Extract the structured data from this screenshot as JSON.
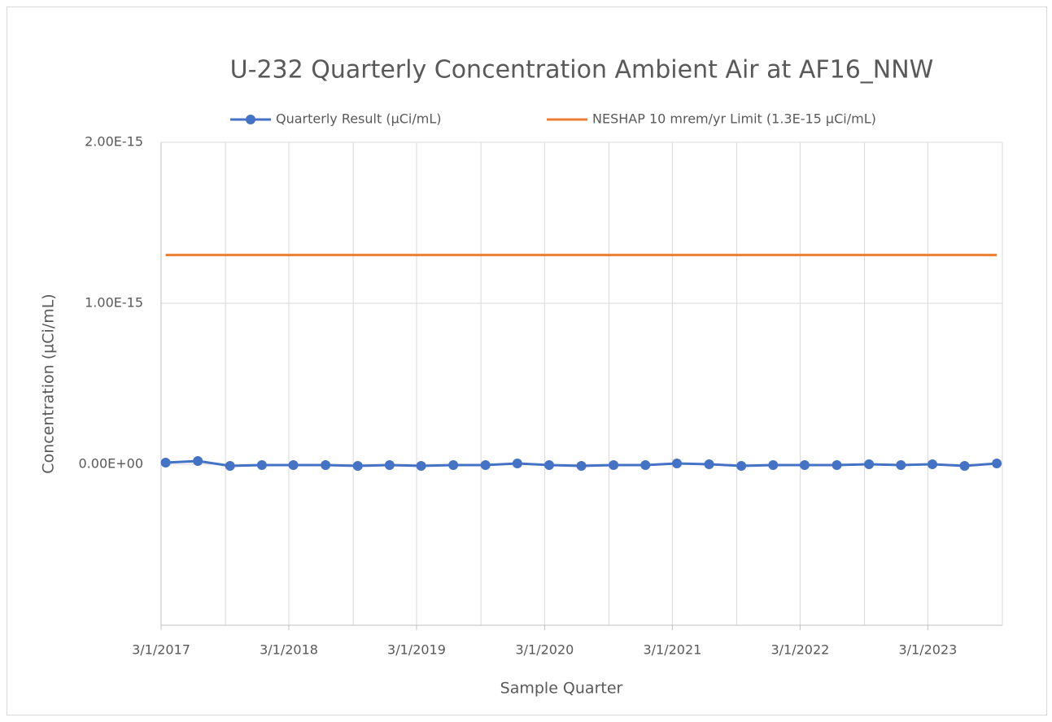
{
  "chart_data": {
    "type": "line",
    "title": "U-232 Quarterly Concentration Ambient Air  at AF16_NNW",
    "x_label": "Sample Quarter",
    "y_label": "Concentration (µCi/mL)",
    "x": [
      "3/14/2017",
      "6/14/2017",
      "9/14/2017",
      "12/14/2017",
      "3/14/2018",
      "6/14/2018",
      "9/14/2018",
      "12/14/2018",
      "3/14/2019",
      "6/14/2019",
      "9/14/2019",
      "12/14/2019",
      "3/14/2020",
      "6/14/2020",
      "9/14/2020",
      "12/14/2020",
      "3/14/2021",
      "6/14/2021",
      "9/14/2021",
      "12/14/2021",
      "3/14/2022",
      "6/14/2022",
      "9/14/2022",
      "12/14/2022",
      "3/14/2023",
      "6/14/2023",
      "9/14/2023"
    ],
    "series": [
      {
        "name": "Quarterly Result (µCi/mL)",
        "color": "#4472c4",
        "markers": true,
        "values": [
          1e-17,
          2e-17,
          -1e-17,
          -5e-18,
          -5e-18,
          -5e-18,
          -1e-17,
          -5e-18,
          -1e-17,
          -5e-18,
          -5e-18,
          5e-18,
          -5e-18,
          -1e-17,
          -5e-18,
          -5e-18,
          5e-18,
          0,
          -1e-17,
          -5e-18,
          -5e-18,
          -5e-18,
          0,
          -5e-18,
          0,
          -1e-17,
          5e-18
        ]
      },
      {
        "name": "NESHAP 10 mrem/yr Limit (1.3E-15 µCi/mL)",
        "color": "#ed7d31",
        "markers": false,
        "values": [
          1.3e-15,
          1.3e-15,
          1.3e-15,
          1.3e-15,
          1.3e-15,
          1.3e-15,
          1.3e-15,
          1.3e-15,
          1.3e-15,
          1.3e-15,
          1.3e-15,
          1.3e-15,
          1.3e-15,
          1.3e-15,
          1.3e-15,
          1.3e-15,
          1.3e-15,
          1.3e-15,
          1.3e-15,
          1.3e-15,
          1.3e-15,
          1.3e-15,
          1.3e-15,
          1.3e-15,
          1.3e-15,
          1.3e-15,
          1.3e-15
        ]
      }
    ],
    "xlim": [
      "3/1/2017",
      "9/30/2023"
    ],
    "xticks": [
      "3/1/2017",
      "3/1/2018",
      "3/1/2019",
      "3/1/2020",
      "3/1/2021",
      "3/1/2022",
      "3/1/2023"
    ],
    "x_minor_ticks": [
      "9/1/2017",
      "9/1/2018",
      "9/1/2019",
      "9/1/2020",
      "9/1/2021",
      "9/1/2022"
    ],
    "ylim": [
      -1e-15,
      2e-15
    ],
    "yticks": [
      {
        "value": 0,
        "label": "0.00E+00"
      },
      {
        "value": 1e-15,
        "label": "1.00E-15"
      },
      {
        "value": 2e-15,
        "label": "2.00E-15"
      }
    ],
    "grid": true,
    "legend": "top"
  }
}
